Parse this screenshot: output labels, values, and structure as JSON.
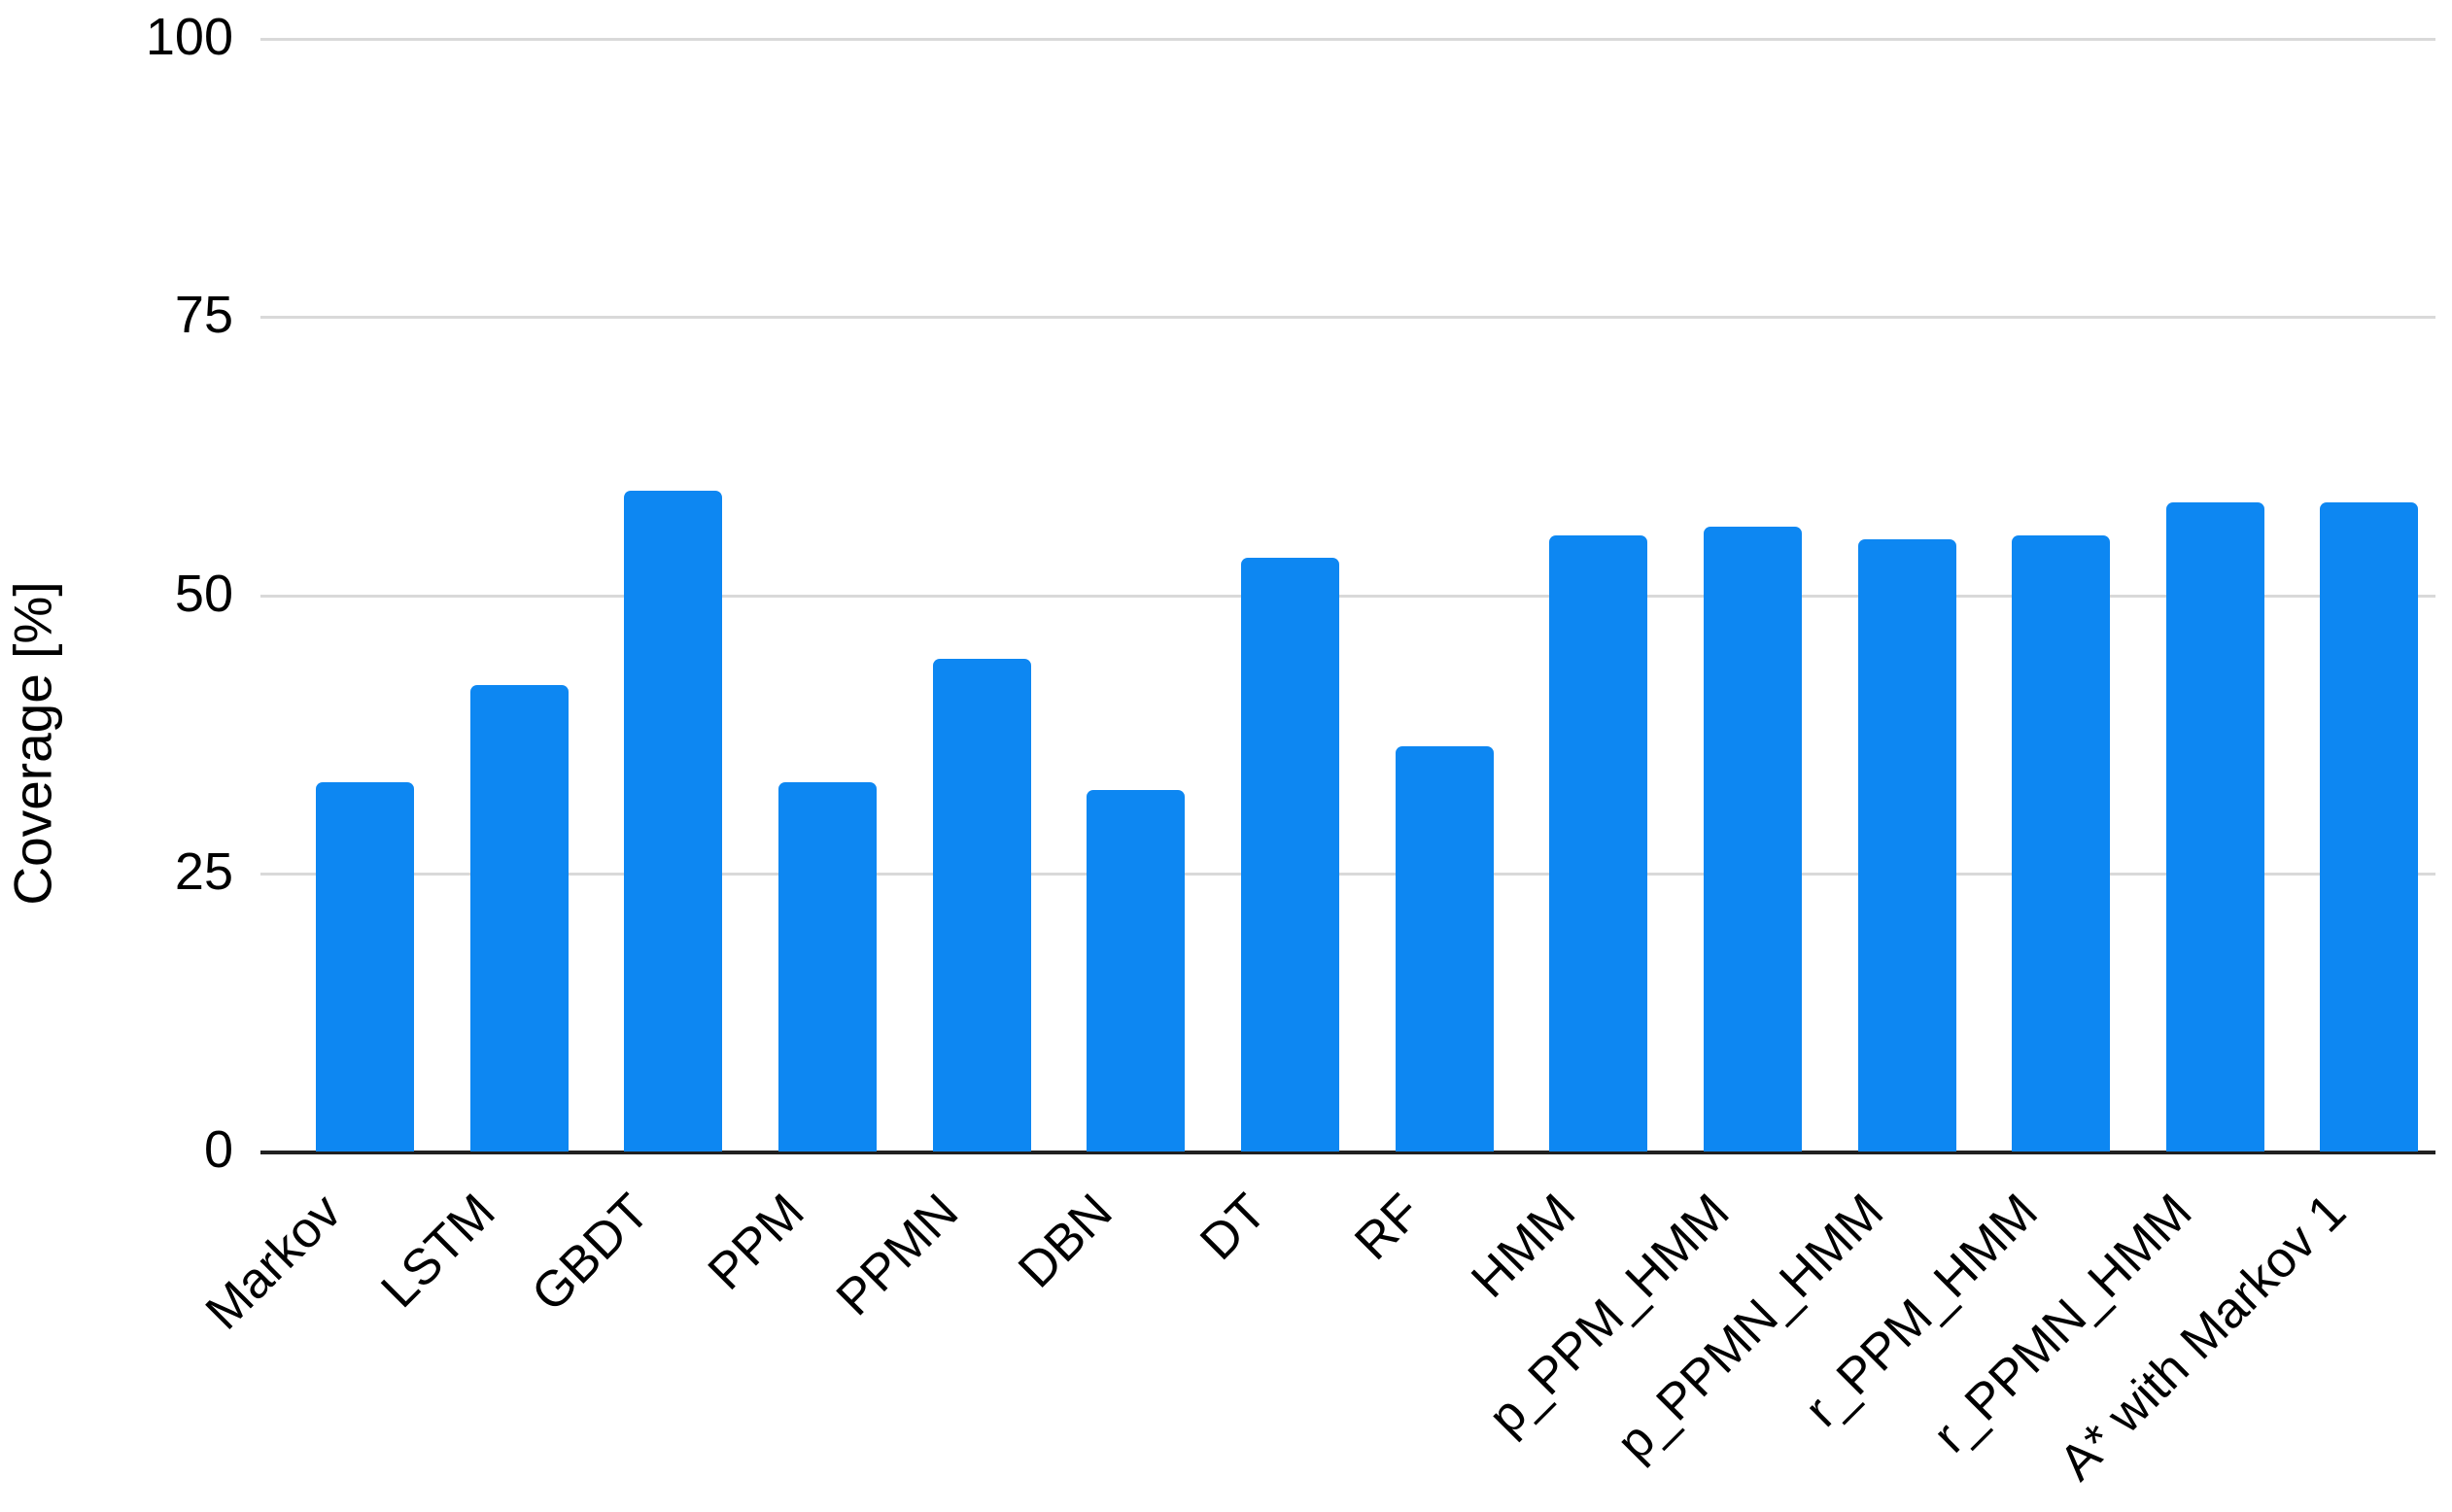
{
  "chart_data": {
    "type": "bar",
    "title": "",
    "xlabel": "",
    "ylabel": "Coverage [%]",
    "categories": [
      "Markov",
      "LSTM",
      "GBDT",
      "PPM",
      "PPMN",
      "DBN",
      "DT",
      "RF",
      "HMM",
      "p_PPM_HMM",
      "p_PPMN_HMM",
      "r_PPM_HMM",
      "r_PPMN_HMM",
      "A* with Markov 1"
    ],
    "values": [
      33.2,
      41.9,
      59.4,
      33.2,
      44.3,
      32.5,
      53.4,
      36.4,
      55.4,
      56.2,
      55.0,
      55.4,
      58.3,
      58.3
    ],
    "ylim": [
      0,
      100
    ],
    "yticks": [
      0,
      25,
      50,
      75,
      100
    ],
    "grid": true,
    "legend": "none",
    "colors": {
      "bar": "#0d87f2",
      "gridline": "#d9d9d9",
      "axis_line": "#212121",
      "text": "#000000",
      "background": "#ffffff"
    }
  }
}
